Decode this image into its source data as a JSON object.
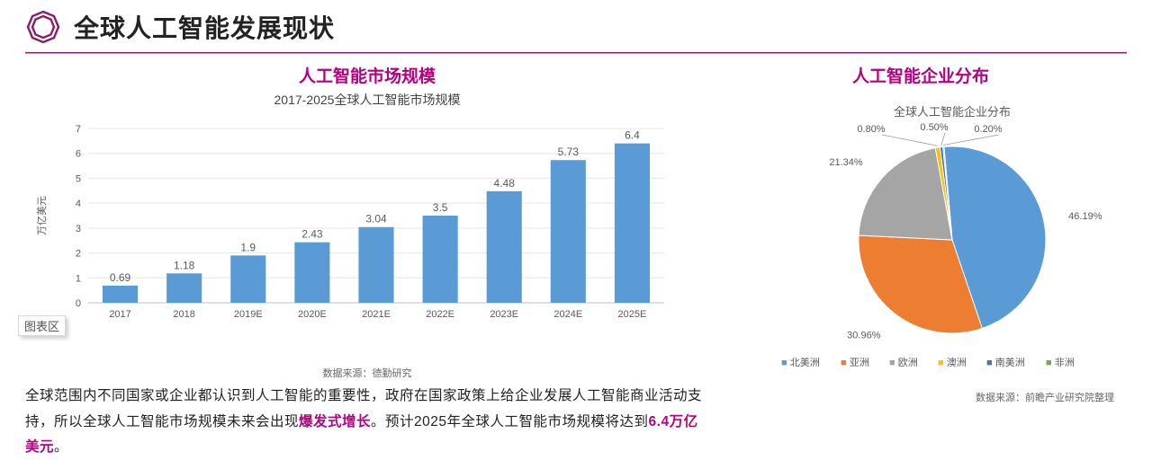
{
  "theme": {
    "accent": "#8a1c6a",
    "rule_colors": [
      "#8a1c6a",
      "#f0a000"
    ],
    "section_title_color": "#b5007f"
  },
  "header": {
    "title": "全球人工智能发展现状"
  },
  "left": {
    "section_title": "人工智能市场规模",
    "chart": {
      "type": "bar",
      "subtitle": "2017-2025全球人工智能市场规模",
      "ylabel": "万亿美元",
      "categories": [
        "2017",
        "2018",
        "2019E",
        "2020E",
        "2021E",
        "2022E",
        "2023E",
        "2024E",
        "2025E"
      ],
      "values": [
        0.69,
        1.18,
        1.9,
        2.43,
        3.04,
        3.5,
        4.48,
        5.73,
        6.4
      ],
      "bar_color": "#5b9bd5",
      "axis_color": "#bfbfbf",
      "grid_color": "#e6e6e6",
      "text_color": "#5a5a5a",
      "tick_fontsize": 11,
      "value_fontsize": 12,
      "ylabel_fontsize": 11,
      "ylim": [
        0,
        7
      ],
      "ytick_step": 1,
      "bar_width_ratio": 0.55
    },
    "source": "数据来源：德勤研究",
    "shadow_label": "图表区",
    "paragraph": {
      "pre": "全球范围内不同国家或企业都认识到人工智能的重要性，政府在国家政策上给企业发展人工智能商业活动支持，所以全球人工智能市场规模未来会出现",
      "hl1": "爆发式增长",
      "mid": "。预计2025年全球人工智能市场规模将达到",
      "hl2": "6.4万亿美元",
      "post": "。"
    }
  },
  "right": {
    "section_title": "人工智能企业分布",
    "chart": {
      "type": "pie",
      "subtitle": "全球人工智能企业分布",
      "slices": [
        {
          "label": "北美洲",
          "value": 46.19,
          "color": "#5b9bd5",
          "label_text": "46.19%"
        },
        {
          "label": "亚洲",
          "value": 30.96,
          "color": "#ed7d31",
          "label_text": "30.96%"
        },
        {
          "label": "欧洲",
          "value": 21.34,
          "color": "#a5a5a5",
          "label_text": "21.34%"
        },
        {
          "label": "澳洲",
          "value": 0.8,
          "color": "#ffc000",
          "label_text": "0.80%"
        },
        {
          "label": "南美洲",
          "value": 0.5,
          "color": "#4472c4",
          "label_text": "0.50%"
        },
        {
          "label": "非洲",
          "value": 0.2,
          "color": "#70ad47",
          "label_text": "0.20%"
        }
      ],
      "value_fontsize": 11,
      "text_color": "#5a5a5a",
      "legend_fontsize": 11,
      "legend_marker": "■",
      "legend_marker_color": "#a5a5a5",
      "start_angle_deg": -5
    },
    "source": "数据来源：前瞻产业研究院整理"
  }
}
